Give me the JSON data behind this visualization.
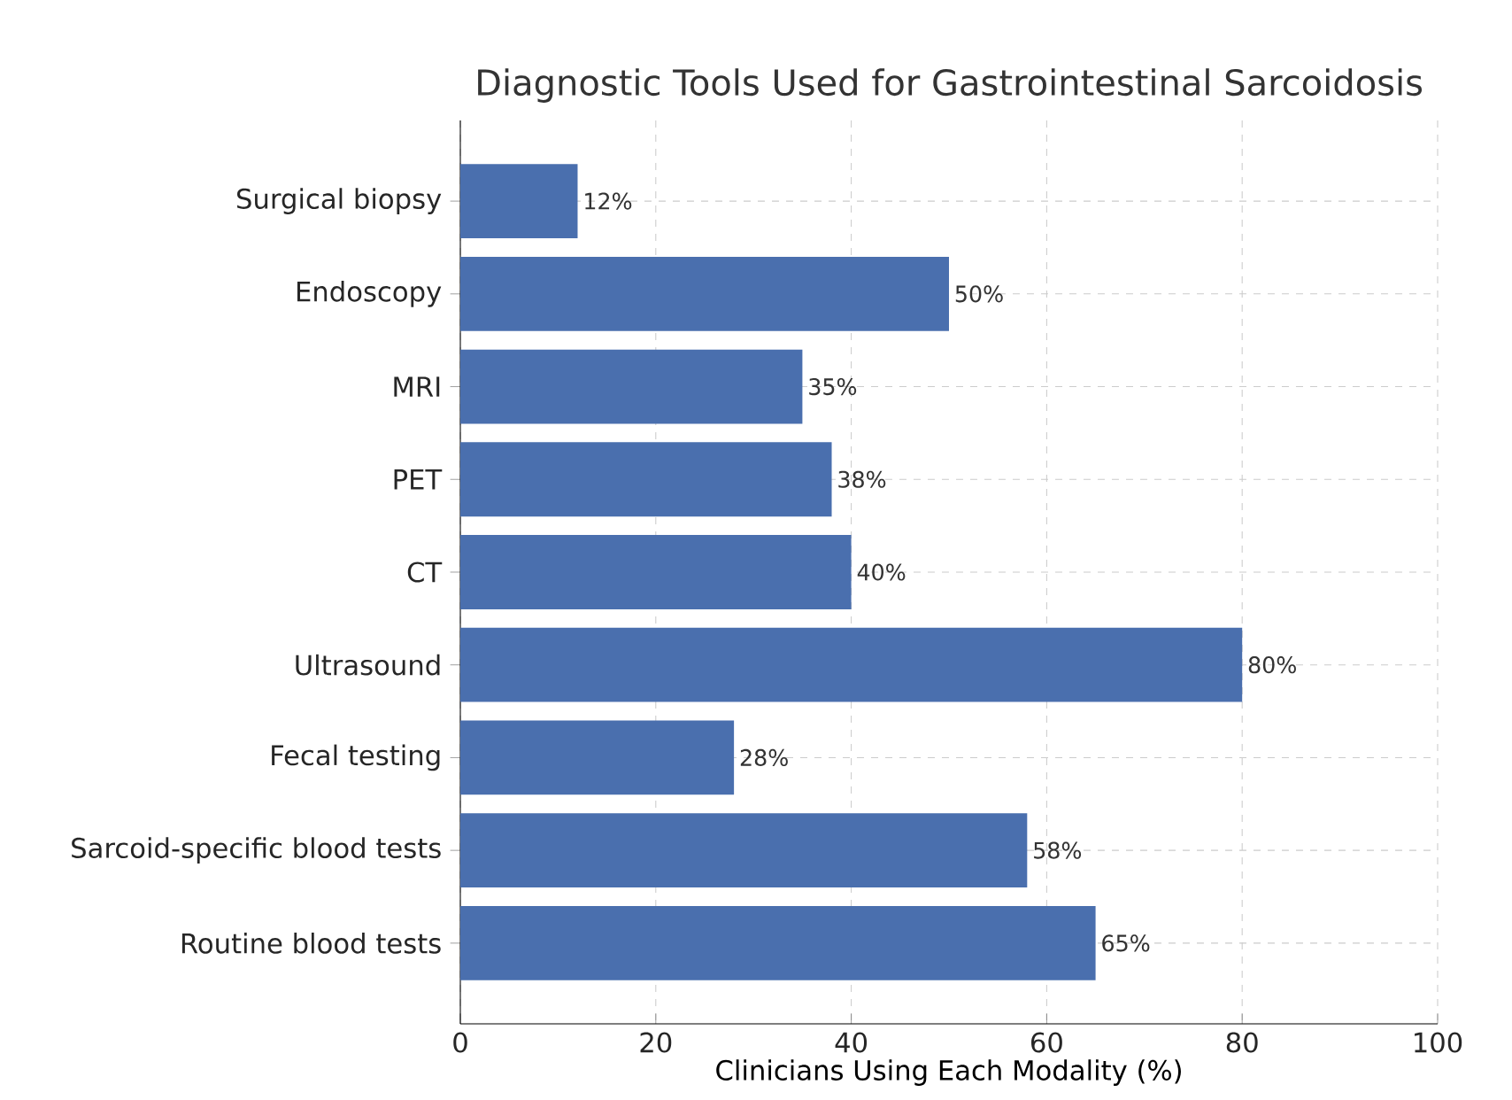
{
  "chart_data": {
    "type": "bar",
    "orientation": "horizontal",
    "title": "Diagnostic Tools Used for Gastrointestinal Sarcoidosis",
    "xlabel": "Clinicians Using Each Modality (%)",
    "categories": [
      "Surgical biopsy",
      "Endoscopy",
      "MRI",
      "PET",
      "CT",
      "Ultrasound",
      "Fecal testing",
      "Sarcoid-specific blood tests",
      "Routine blood tests"
    ],
    "values": [
      12,
      50,
      35,
      38,
      40,
      80,
      28,
      58,
      65
    ],
    "value_labels": [
      "12%",
      "50%",
      "35%",
      "38%",
      "40%",
      "80%",
      "28%",
      "58%",
      "65%"
    ],
    "color": "#4a6fae",
    "xlim": [
      0,
      100
    ],
    "xticks": [
      0,
      20,
      40,
      60,
      80,
      100
    ],
    "grid": true
  }
}
